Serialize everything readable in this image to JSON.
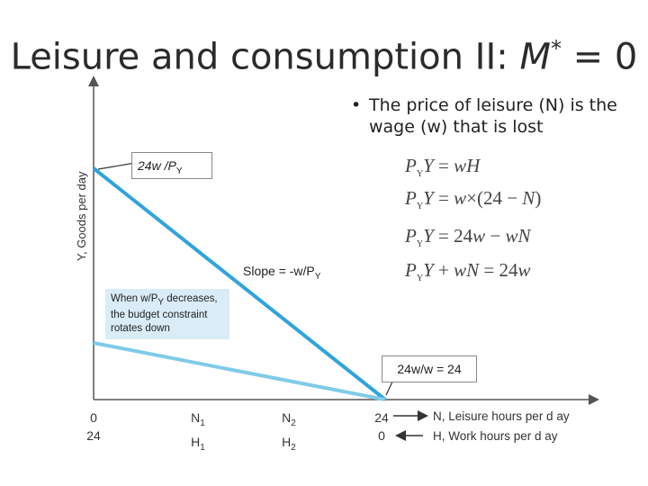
{
  "slide": {
    "title_text": "Leisure and consumption II: ",
    "title_var": "M",
    "title_sup": "*",
    "title_tail": " = 0",
    "bullet_dot": "•",
    "bullet_text": "The price of leisure (N) is the wage (w) that is lost"
  },
  "chart": {
    "y_axis_label": "Y, Goods per day",
    "intercept_label_main": "24w /P",
    "intercept_label_sub": "Y",
    "slope_label_main": "Slope = -w/P",
    "slope_label_sub": "Y",
    "note_main": "When w/P",
    "note_sub": "Y",
    "note_rest": " decreases, the budget constraint rotates down",
    "x_intercept_label": "24w/w = 24",
    "line_color": "#2fa4dc",
    "rotated_line_color": "#7fcbe8",
    "ticks": [
      {
        "top": "0",
        "bottom": "24"
      },
      {
        "top": "N",
        "top_sub": "1",
        "bottom": "H",
        "bottom_sub": "1"
      },
      {
        "top": "N",
        "top_sub": "2",
        "bottom": "H",
        "bottom_sub": "2"
      },
      {
        "top": "24",
        "bottom": "0"
      }
    ],
    "legend_top": "N, Leisure hours per d ay",
    "legend_bottom": "H, Work hours per d ay"
  },
  "equations": [
    "PYY = wH",
    "PYY = w×(24 − N)",
    "PYY = 24w − wN",
    "PYY + wN = 24w"
  ]
}
